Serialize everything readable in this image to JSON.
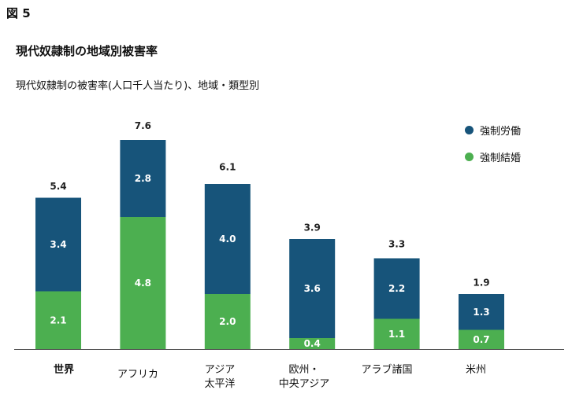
{
  "figure_label": "図 5",
  "title": "現代奴隷制の地域別被害率",
  "subtitle": "現代奴隷制の被害率(人口千人当たり)、地域・類型別",
  "chart_data": {
    "type": "bar",
    "stacked": true,
    "categories": [
      "世界",
      "アフリカ",
      "アジア\n太平洋",
      "欧州・\n中央アジア",
      "アラブ諸国",
      "米州"
    ],
    "totals": [
      5.4,
      7.6,
      6.1,
      3.9,
      3.3,
      1.9
    ],
    "series": [
      {
        "name": "強制結婚",
        "color": "#4caf50",
        "values": [
          2.1,
          4.8,
          2.0,
          0.4,
          1.1,
          0.7
        ]
      },
      {
        "name": "強制労働",
        "color": "#17547a",
        "values": [
          3.4,
          2.8,
          4.0,
          3.6,
          2.2,
          1.3
        ]
      }
    ],
    "legend_position": "top-right",
    "ylim": [
      0,
      7.6
    ],
    "grid": false
  },
  "colors": {
    "forced_labor": "#17547a",
    "forced_marriage": "#4caf50",
    "axis": "#555555"
  }
}
